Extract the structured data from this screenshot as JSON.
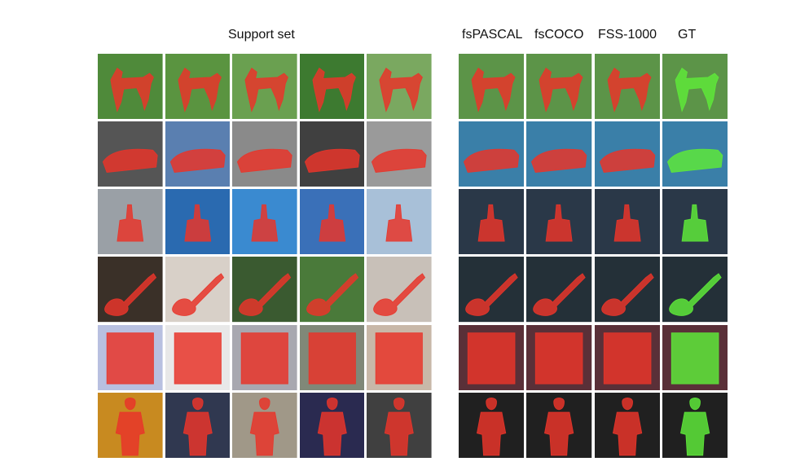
{
  "headers": {
    "support": "Support set",
    "methods": [
      "fsPASCAL",
      "fsCOCO",
      "FSS-1000",
      "GT"
    ]
  },
  "colors": {
    "prediction_mask": "#e8352a",
    "gt_mask": "#5ee83a"
  },
  "rows": [
    {
      "name": "dog",
      "support_bgs": [
        "#4f8a3a",
        "#5a9440",
        "#6aa050",
        "#3d7a30",
        "#7aa860"
      ],
      "result_bg": "#5c9448",
      "shape": "dog"
    },
    {
      "name": "train",
      "support_bgs": [
        "#555",
        "#5a7fb0",
        "#8a8a8a",
        "#404040",
        "#9a9a9a"
      ],
      "result_bg": "#3a7fa8",
      "shape": "train"
    },
    {
      "name": "oil-rig",
      "support_bgs": [
        "#9aa0a6",
        "#2a6ab0",
        "#3a8ad0",
        "#3a70b8",
        "#a8c0d8"
      ],
      "result_bg": "#2a3848",
      "shape": "rig"
    },
    {
      "name": "guitar",
      "support_bgs": [
        "#3a3028",
        "#d8d0c8",
        "#3a5a30",
        "#4a7a3a",
        "#c8c0b8"
      ],
      "result_bg": "#243038",
      "shape": "guitar"
    },
    {
      "name": "window",
      "support_bgs": [
        "#b8c0e0",
        "#e8e8e8",
        "#a8a8b0",
        "#808878",
        "#c8b8a8"
      ],
      "result_bg": "#5a3038",
      "shape": "window"
    },
    {
      "name": "person",
      "support_bgs": [
        "#c88a20",
        "#303850",
        "#a09888",
        "#2a2a50",
        "#404040"
      ],
      "result_bg": "#202020",
      "shape": "person"
    }
  ]
}
